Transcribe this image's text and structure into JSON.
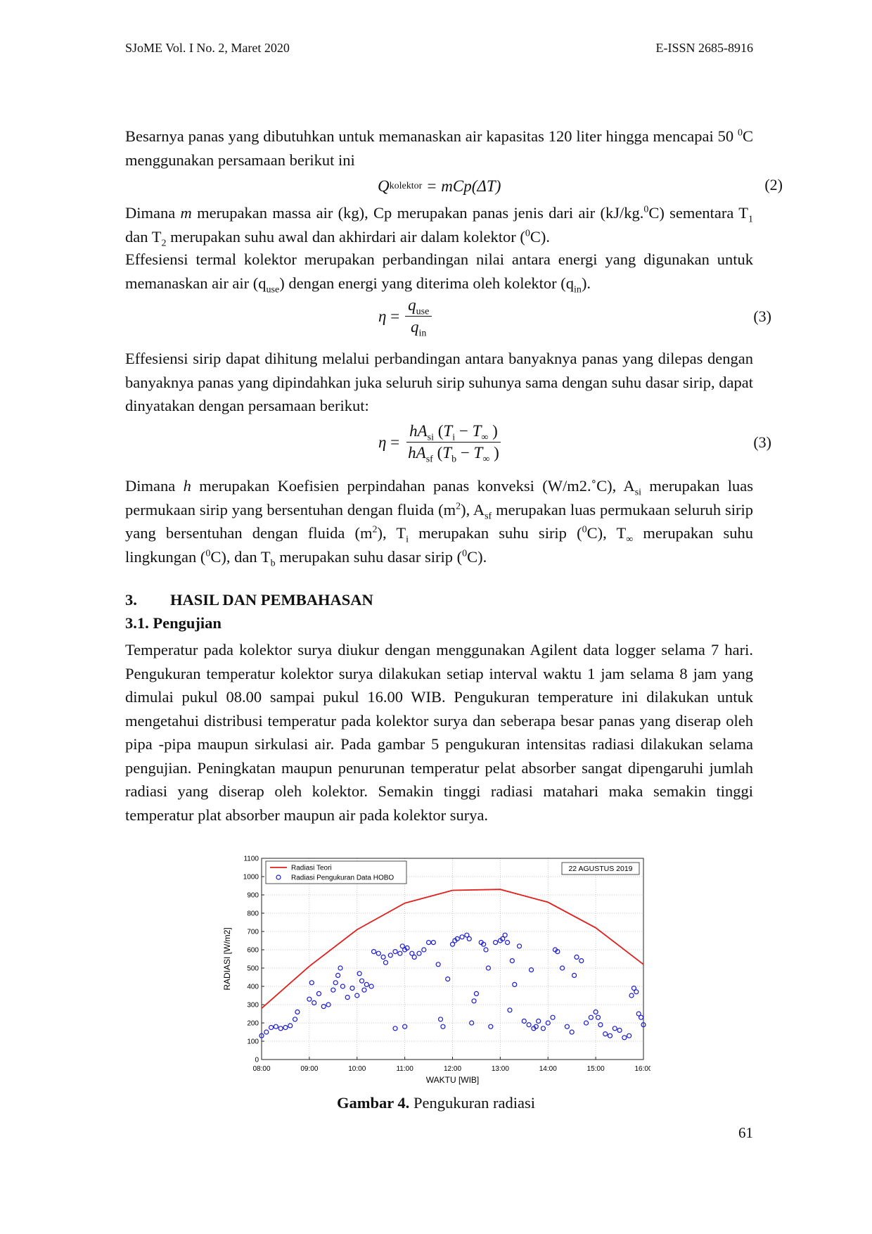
{
  "header": {
    "left": "SJoME Vol. I No. 2, Maret 2020",
    "right": "E-ISSN 2685-8916"
  },
  "paragraphs": [
    [
      "Besarnya panas yang dibutuhkan untuk memanaskan air kapasitas 120 liter hingga mencapai 50 ",
      {
        "sup": "0"
      },
      "C menggunakan persamaan berikut ini"
    ],
    [
      "Dimana ",
      {
        "i": "m"
      },
      " merupakan massa air (kg), Cp merupakan panas jenis dari air (kJ/kg.",
      {
        "sup": "0"
      },
      "C) sementara T",
      {
        "sub": "1"
      },
      " dan T",
      {
        "sub": "2"
      },
      " merupakan suhu awal dan akhirdari air dalam kolektor (",
      {
        "sup": "0"
      },
      "C)."
    ],
    [
      "Effesiensi termal kolektor merupakan perbandingan nilai antara energi yang digunakan untuk memanaskan air air (q",
      {
        "sub": "use"
      },
      ") dengan energi yang diterima oleh kolektor (q",
      {
        "sub": "in"
      },
      ")."
    ],
    [
      "Effesiensi sirip dapat dihitung melalui perbandingan antara banyaknya panas yang dilepas dengan banyaknya panas yang dipindahkan juka seluruh sirip suhunya sama dengan suhu dasar sirip, dapat dinyatakan dengan persamaan berikut:"
    ],
    [
      "Dimana ",
      {
        "i": "h"
      },
      " merupakan Koefisien perpindahan panas konveksi (W/m2.˚C), A",
      {
        "sub": "si"
      },
      " merupakan luas permukaan sirip yang bersentuhan dengan fluida (m",
      {
        "sup": "2"
      },
      "), A",
      {
        "sub": "sf"
      },
      " merupakan luas permukaan seluruh sirip yang bersentuhan dengan fluida (m",
      {
        "sup": "2"
      },
      "), T",
      {
        "sub": "i"
      },
      " merupakan suhu sirip (",
      {
        "sup": "0"
      },
      "C), T",
      {
        "sub": "∞"
      },
      " merupakan suhu lingkungan (",
      {
        "sup": "0"
      },
      "C), dan T",
      {
        "sub": "b"
      },
      " merupakan suhu dasar sirip (",
      {
        "sup": "0"
      },
      "C)."
    ],
    [
      "Temperatur pada kolektor surya diukur dengan menggunakan Agilent data logger selama 7 hari. Pengukuran temperatur kolektor surya dilakukan setiap interval waktu 1 jam selama 8 jam yang dimulai pukul 08.00 sampai pukul 16.00 WIB. Pengukuran temperature ini dilakukan untuk mengetahui distribusi temperatur pada kolektor surya dan seberapa besar panas yang diserap oleh pipa -pipa maupun sirkulasi air. Pada gambar 5 pengukuran intensitas radiasi dilakukan selama pengujian. Peningkatan maupun penurunan temperatur pelat absorber sangat dipengaruhi jumlah radiasi yang diserap oleh kolektor. Semakin tinggi radiasi matahari maka semakin tinggi temperatur plat absorber maupun air pada kolektor surya."
    ]
  ],
  "equations": [
    {
      "runs": [
        {
          "i": "Q"
        },
        {
          "sub": "kolektor"
        },
        {
          "i": " = mCp(ΔT)"
        }
      ],
      "number": "(2)"
    },
    {
      "lead": [
        {
          "i": "η"
        },
        " ="
      ],
      "num": [
        {
          "i": "q"
        },
        {
          "sub": "use"
        }
      ],
      "den": [
        {
          "i": "q"
        },
        {
          "sub": "in"
        }
      ],
      "number": "(3)"
    },
    {
      "lead": [
        {
          "i": "η"
        },
        " ="
      ],
      "num": [
        {
          "i": "hA"
        },
        {
          "sub": "si"
        },
        " (",
        {
          "i": "T"
        },
        {
          "sub": "i"
        },
        " − ",
        {
          "i": "T"
        },
        {
          "sub": "∞"
        },
        " )"
      ],
      "den": [
        {
          "i": "hA"
        },
        {
          "sub": "sf"
        },
        " (",
        {
          "i": "T"
        },
        {
          "sub": "b"
        },
        " − ",
        {
          "i": "T"
        },
        {
          "sub": "∞"
        },
        " )"
      ],
      "number": "(3)"
    }
  ],
  "section": {
    "number": "3.",
    "title": "HASIL DAN PEMBAHASAN"
  },
  "subsection": "3.1. Pengujian",
  "chart_data": {
    "type": "line-scatter",
    "annotation": "22 AGUSTUS 2019",
    "x_label": "WAKTU [WIB]",
    "y_label": "RADIASI [W/m2]",
    "xlim": [
      8,
      16
    ],
    "ylim": [
      0,
      1100
    ],
    "grid": true,
    "legend": "upper left",
    "xticks": [
      {
        "value": 8,
        "label": "08:00"
      },
      {
        "value": 9,
        "label": "09:00"
      },
      {
        "value": 10,
        "label": "10:00"
      },
      {
        "value": 11,
        "label": "11:00"
      },
      {
        "value": 12,
        "label": "12:00"
      },
      {
        "value": 13,
        "label": "13:00"
      },
      {
        "value": 14,
        "label": "14:00"
      },
      {
        "value": 15,
        "label": "15:00"
      },
      {
        "value": 16,
        "label": "16:00"
      }
    ],
    "yticks": [
      0,
      100,
      200,
      300,
      400,
      500,
      600,
      700,
      800,
      900,
      1000,
      1100
    ],
    "series": [
      {
        "name": "Radiasi Teori",
        "type": "line",
        "color": "#e0201c",
        "x": [
          8,
          9,
          10,
          11,
          12,
          13,
          14,
          15,
          16
        ],
        "values": [
          280,
          510,
          710,
          855,
          925,
          930,
          860,
          720,
          520
        ]
      },
      {
        "name": "Radiasi Pengukuran Data HOBO",
        "type": "scatter",
        "color": "#1a1ad0",
        "x": [
          8.0,
          8.1,
          8.2,
          8.3,
          8.4,
          8.5,
          8.6,
          8.7,
          8.75,
          9.0,
          9.05,
          9.1,
          9.2,
          9.3,
          9.4,
          9.5,
          9.55,
          9.6,
          9.65,
          9.7,
          9.8,
          9.9,
          10.0,
          10.05,
          10.1,
          10.15,
          10.2,
          10.3,
          10.35,
          10.45,
          10.55,
          10.6,
          10.7,
          10.8,
          10.8,
          10.9,
          10.95,
          11.0,
          11.0,
          11.05,
          11.15,
          11.2,
          11.3,
          11.4,
          11.5,
          11.6,
          11.7,
          11.75,
          11.8,
          11.9,
          12.0,
          12.05,
          12.1,
          12.2,
          12.3,
          12.35,
          12.4,
          12.45,
          12.5,
          12.6,
          12.65,
          12.7,
          12.75,
          12.8,
          12.9,
          13.0,
          13.05,
          13.1,
          13.15,
          13.2,
          13.25,
          13.3,
          13.4,
          13.5,
          13.6,
          13.65,
          13.7,
          13.75,
          13.8,
          13.9,
          14.0,
          14.1,
          14.15,
          14.2,
          14.3,
          14.4,
          14.5,
          14.55,
          14.6,
          14.7,
          14.8,
          14.9,
          15.0,
          15.05,
          15.1,
          15.2,
          15.3,
          15.4,
          15.5,
          15.6,
          15.7,
          15.75,
          15.8,
          15.85,
          15.9,
          15.95,
          16.0
        ],
        "values": [
          130,
          150,
          175,
          180,
          170,
          175,
          185,
          220,
          260,
          330,
          420,
          310,
          360,
          290,
          300,
          380,
          420,
          460,
          500,
          400,
          340,
          390,
          350,
          470,
          430,
          380,
          410,
          400,
          590,
          580,
          560,
          530,
          570,
          590,
          170,
          580,
          620,
          600,
          180,
          610,
          580,
          560,
          580,
          600,
          640,
          640,
          520,
          220,
          180,
          440,
          630,
          650,
          660,
          670,
          680,
          660,
          200,
          320,
          360,
          640,
          630,
          600,
          500,
          180,
          640,
          650,
          660,
          680,
          640,
          270,
          540,
          410,
          620,
          210,
          190,
          490,
          170,
          180,
          210,
          170,
          200,
          230,
          600,
          590,
          500,
          180,
          150,
          460,
          560,
          540,
          200,
          230,
          260,
          230,
          190,
          140,
          130,
          170,
          160,
          120,
          130,
          350,
          390,
          370,
          250,
          230,
          190
        ]
      }
    ]
  },
  "caption": {
    "label": "Gambar 4.",
    "text": " Pengukuran radiasi"
  },
  "page_number": "61"
}
